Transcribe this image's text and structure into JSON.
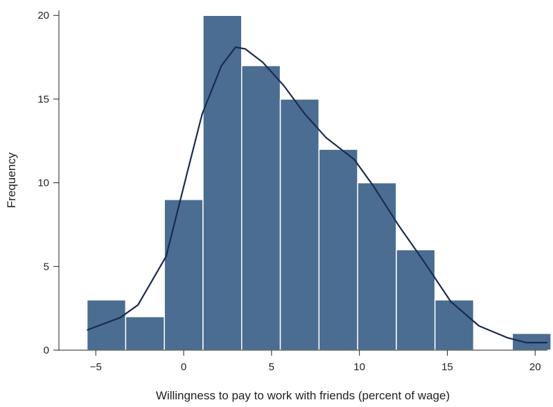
{
  "chart_data": {
    "type": "histogram",
    "xlabel": "Willingness to pay to work with friends (percent of wage)",
    "ylabel": "Frequency",
    "bins": [
      -5.5,
      -3.3,
      -1.1,
      1.1,
      3.3,
      5.5,
      7.7,
      9.9,
      12.1,
      14.3,
      16.5,
      18.7,
      20.9
    ],
    "counts": [
      3,
      2,
      9,
      20,
      17,
      15,
      12,
      10,
      6,
      3,
      0,
      1
    ],
    "color": "#4a6d91",
    "density": {
      "color": "#1b2a52",
      "x": [
        -5.5,
        -3.6,
        -2.6,
        -1.0,
        0.2,
        1.05,
        2.15,
        2.95,
        3.5,
        4.5,
        5.7,
        6.9,
        8.1,
        9.7,
        10.8,
        12.2,
        13.6,
        15.2,
        16.8,
        18.4,
        19.5,
        20.7
      ],
      "y": [
        1.2,
        1.95,
        2.7,
        5.6,
        10.6,
        14.1,
        17.0,
        18.1,
        18.0,
        17.2,
        15.8,
        14.1,
        12.7,
        11.4,
        9.8,
        7.5,
        5.4,
        2.9,
        1.45,
        0.75,
        0.45,
        0.45
      ]
    },
    "xlim": [
      -7.1,
      20.7
    ],
    "ylim": [
      0,
      20.3
    ],
    "xticks": [
      {
        "value": -5,
        "label": "−5"
      },
      0,
      5,
      10,
      15,
      20
    ],
    "yticks": [
      0,
      5,
      10,
      15,
      20
    ]
  }
}
